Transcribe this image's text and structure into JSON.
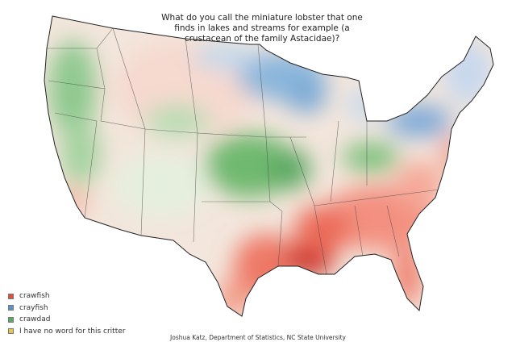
{
  "title": "What do you call the miniature lobster that one finds in lakes and streams for example (a crustacean of the family Astacidae)?",
  "legend": [
    {
      "label": "crawfish",
      "color": "#e0503f"
    },
    {
      "label": "crayfish",
      "color": "#5b93c9"
    },
    {
      "label": "crawdad",
      "color": "#5aa862"
    },
    {
      "label": "I have no word for this critter",
      "color": "#e8c44a"
    }
  ],
  "credit": "Joshua Katz, Department of Statistics, NC State University"
}
